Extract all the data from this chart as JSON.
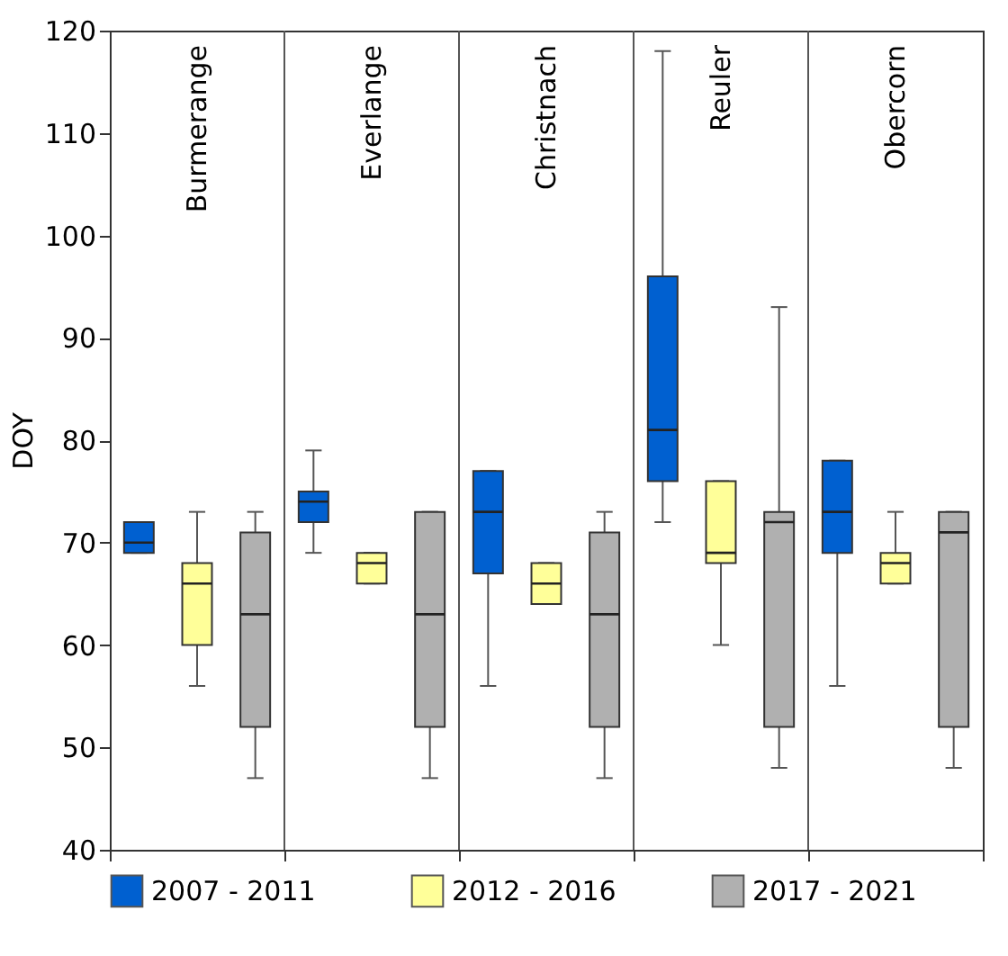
{
  "chart_data": {
    "type": "box",
    "ylabel": "DOY",
    "categories": [
      "Burmerange",
      "Everlange",
      "Christnach",
      "Reuler",
      "Obercorn"
    ],
    "ylim": [
      40,
      120
    ],
    "yticks": [
      40,
      50,
      60,
      70,
      80,
      90,
      100,
      110,
      120
    ],
    "grid": false,
    "legend": "bottom",
    "series": [
      {
        "name": "2007 - 2011",
        "color": "#0060d0",
        "boxes": [
          {
            "low": 69,
            "q1": 69,
            "median": 70,
            "q3": 72,
            "high": 72
          },
          {
            "low": 69,
            "q1": 72,
            "median": 74,
            "q3": 75,
            "high": 79
          },
          {
            "low": 56,
            "q1": 67,
            "median": 73,
            "q3": 77,
            "high": 77
          },
          {
            "low": 72,
            "q1": 76,
            "median": 81,
            "q3": 96,
            "high": 118
          },
          {
            "low": 56,
            "q1": 69,
            "median": 73,
            "q3": 78,
            "high": 78
          }
        ]
      },
      {
        "name": "2012 - 2016",
        "color": "#ffff99",
        "boxes": [
          {
            "low": 56,
            "q1": 60,
            "median": 66,
            "q3": 68,
            "high": 73
          },
          {
            "low": 66,
            "q1": 66,
            "median": 68,
            "q3": 69,
            "high": 69
          },
          {
            "low": 64,
            "q1": 64,
            "median": 66,
            "q3": 68,
            "high": 68
          },
          {
            "low": 60,
            "q1": 68,
            "median": 69,
            "q3": 76,
            "high": 76
          },
          {
            "low": 66,
            "q1": 66,
            "median": 68,
            "q3": 69,
            "high": 73
          }
        ]
      },
      {
        "name": "2017 - 2021",
        "color": "#b0b0b0",
        "boxes": [
          {
            "low": 47,
            "q1": 52,
            "median": 63,
            "q3": 71,
            "high": 73
          },
          {
            "low": 47,
            "q1": 52,
            "median": 63,
            "q3": 73,
            "high": 73
          },
          {
            "low": 47,
            "q1": 52,
            "median": 63,
            "q3": 71,
            "high": 73
          },
          {
            "low": 48,
            "q1": 52,
            "median": 72,
            "q3": 73,
            "high": 93
          },
          {
            "low": 48,
            "q1": 52,
            "median": 71,
            "q3": 73,
            "high": 73
          }
        ]
      }
    ]
  }
}
